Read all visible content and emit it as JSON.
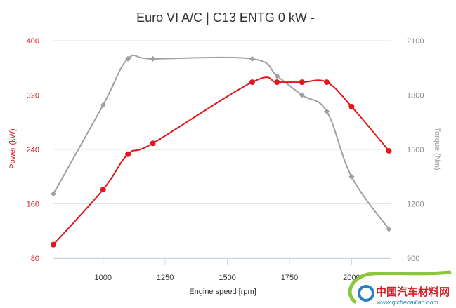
{
  "chart_data": {
    "type": "line",
    "title": "Euro VI A/C | C13 ENTG 0 kW -",
    "xlabel": "Engine speed [rpm]",
    "ylabel_left": "Power (kW)",
    "ylabel_right": "Torque (Nm)",
    "xlim": [
      800,
      2160
    ],
    "x_ticks": [
      1000,
      1250,
      1500,
      1750,
      2000
    ],
    "ylim_left": [
      80,
      400
    ],
    "y_ticks_left": [
      80,
      160,
      240,
      320,
      400
    ],
    "ylim_right": [
      900,
      2100
    ],
    "y_ticks_right": [
      900,
      1200,
      1500,
      1800,
      2100
    ],
    "grid": "horizontal",
    "series": [
      {
        "name": "Power",
        "axis": "left",
        "color": "#e3161b",
        "x": [
          800,
          1000,
          1100,
          1200,
          1600,
          1700,
          1800,
          1900,
          2000,
          2150
        ],
        "values": [
          100,
          181,
          233,
          249,
          339,
          339,
          339,
          339,
          303,
          238
        ]
      },
      {
        "name": "Torque",
        "axis": "right",
        "color": "#a0a0a0",
        "x": [
          800,
          1000,
          1100,
          1200,
          1600,
          1700,
          1800,
          1900,
          2000,
          2150
        ],
        "values": [
          1255,
          1745,
          2000,
          2000,
          2000,
          1905,
          1800,
          1710,
          1350,
          1060
        ]
      }
    ]
  },
  "watermark": {
    "text": "中国汽车材料网",
    "url": "www.qichecailiao.com"
  }
}
